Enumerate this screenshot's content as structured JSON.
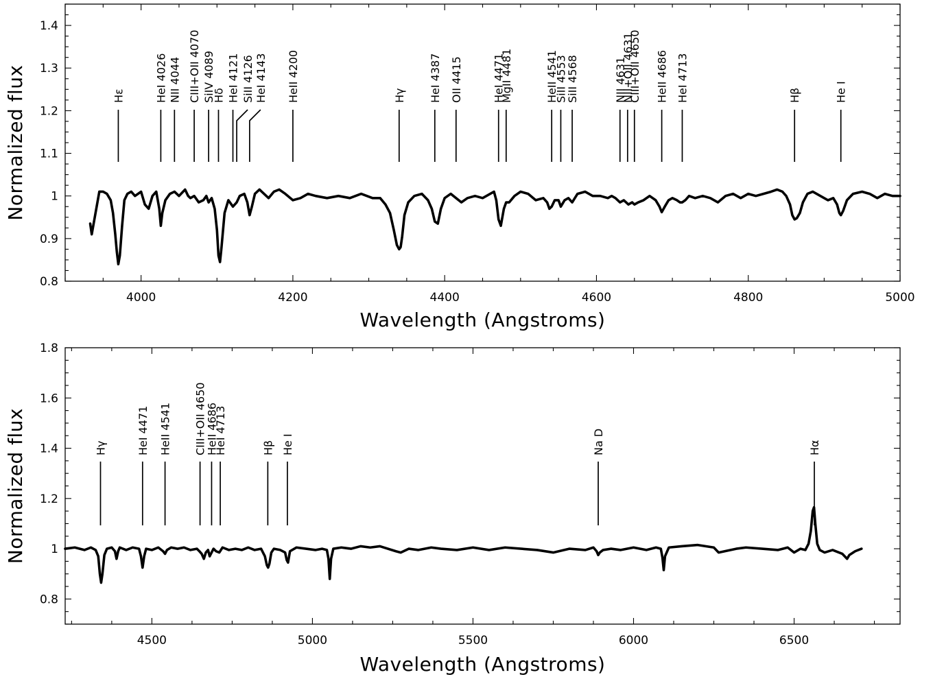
{
  "chart_data": [
    {
      "type": "line",
      "xlabel": "Wavelength (Angstroms)",
      "ylabel": "Normalized flux",
      "xlim": [
        3900,
        5000
      ],
      "ylim": [
        0.8,
        1.45
      ],
      "xticks": [
        4000,
        4200,
        4400,
        4600,
        4800,
        5000
      ],
      "xticklabels": [
        "4000",
        "4200",
        "4400",
        "4600",
        "4800",
        "5000"
      ],
      "yticks": [
        0.8,
        0.9,
        1.0,
        1.1,
        1.2,
        1.3,
        1.4
      ],
      "yticklabels": [
        "0.8",
        "0.9",
        "1",
        "1.1",
        "1.2",
        "1.3",
        "1.4"
      ],
      "grid": false,
      "series": [
        {
          "x": [
            3933,
            3935,
            3940,
            3945,
            3950,
            3955,
            3960,
            3963,
            3966,
            3968,
            3970,
            3972,
            3975,
            3978,
            3982,
            3987,
            3992,
            4000,
            4005,
            4010,
            4015,
            4020,
            4024,
            4026,
            4028,
            4032,
            4038,
            4044,
            4050,
            4058,
            4062,
            4065,
            4070,
            4076,
            4082,
            4086,
            4089,
            4093,
            4097,
            4100,
            4102,
            4104,
            4106,
            4110,
            4115,
            4121,
            4126,
            4130,
            4136,
            4140,
            4143,
            4146,
            4150,
            4156,
            4162,
            4168,
            4175,
            4182,
            4190,
            4200,
            4210,
            4220,
            4230,
            4245,
            4260,
            4275,
            4290,
            4305,
            4315,
            4322,
            4328,
            4333,
            4337,
            4340,
            4342,
            4344,
            4347,
            4352,
            4360,
            4370,
            4378,
            4383,
            4387,
            4391,
            4395,
            4400,
            4408,
            4415,
            4422,
            4430,
            4440,
            4450,
            4460,
            4465,
            4468,
            4471,
            4474,
            4478,
            4481,
            4485,
            4492,
            4500,
            4510,
            4520,
            4530,
            4535,
            4538,
            4541,
            4545,
            4550,
            4553,
            4558,
            4563,
            4568,
            4575,
            4585,
            4595,
            4605,
            4615,
            4620,
            4625,
            4631,
            4636,
            4642,
            4647,
            4650,
            4655,
            4662,
            4670,
            4678,
            4683,
            4686,
            4690,
            4695,
            4700,
            4706,
            4710,
            4713,
            4717,
            4722,
            4730,
            4740,
            4750,
            4760,
            4770,
            4780,
            4790,
            4800,
            4810,
            4820,
            4830,
            4838,
            4845,
            4850,
            4855,
            4858,
            4861,
            4864,
            4868,
            4872,
            4878,
            4885,
            4895,
            4905,
            4912,
            4917,
            4920,
            4922,
            4925,
            4930,
            4938,
            4950,
            4960,
            4970,
            4980,
            4990,
            5000
          ],
          "y": [
            0.935,
            0.91,
            0.96,
            1.01,
            1.01,
            1.005,
            0.99,
            0.96,
            0.91,
            0.87,
            0.84,
            0.86,
            0.93,
            0.99,
            1.005,
            1.01,
            1.0,
            1.01,
            0.98,
            0.97,
            1.0,
            1.01,
            0.97,
            0.93,
            0.96,
            0.99,
            1.005,
            1.01,
            1.0,
            1.015,
            1.0,
            0.995,
            1.0,
            0.985,
            0.99,
            1.0,
            0.985,
            0.995,
            0.97,
            0.92,
            0.86,
            0.845,
            0.88,
            0.96,
            0.99,
            0.975,
            0.985,
            1.0,
            1.005,
            0.985,
            0.955,
            0.975,
            1.005,
            1.015,
            1.005,
            0.995,
            1.01,
            1.015,
            1.005,
            0.99,
            0.995,
            1.005,
            1.0,
            0.995,
            1.0,
            0.995,
            1.005,
            0.995,
            0.995,
            0.98,
            0.96,
            0.92,
            0.885,
            0.875,
            0.88,
            0.905,
            0.955,
            0.985,
            1.0,
            1.005,
            0.99,
            0.97,
            0.94,
            0.935,
            0.97,
            0.995,
            1.005,
            0.995,
            0.985,
            0.995,
            1.0,
            0.995,
            1.005,
            1.01,
            0.99,
            0.945,
            0.93,
            0.97,
            0.985,
            0.985,
            1.0,
            1.01,
            1.005,
            0.99,
            0.995,
            0.985,
            0.97,
            0.975,
            0.99,
            0.99,
            0.975,
            0.99,
            0.995,
            0.985,
            1.005,
            1.01,
            1.0,
            1.0,
            0.995,
            1.0,
            0.995,
            0.985,
            0.99,
            0.98,
            0.985,
            0.98,
            0.985,
            0.99,
            1.0,
            0.99,
            0.975,
            0.962,
            0.975,
            0.99,
            0.995,
            0.99,
            0.985,
            0.985,
            0.99,
            1.0,
            0.995,
            1.0,
            0.995,
            0.985,
            1.0,
            1.005,
            0.995,
            1.005,
            1.0,
            1.005,
            1.01,
            1.015,
            1.01,
            1.0,
            0.98,
            0.955,
            0.945,
            0.948,
            0.96,
            0.985,
            1.005,
            1.01,
            1.0,
            0.99,
            0.995,
            0.98,
            0.96,
            0.955,
            0.965,
            0.99,
            1.005,
            1.01,
            1.005,
            0.995,
            1.005,
            1.0,
            1.0
          ]
        }
      ],
      "annotations": [
        {
          "x": 3970,
          "label": "Hε"
        },
        {
          "x": 4026,
          "label": "HeI 4026"
        },
        {
          "x": 4044,
          "label": "NII 4044"
        },
        {
          "x": 4070,
          "label": "CIII+OII 4070"
        },
        {
          "x": 4089,
          "label": "SiIV 4089"
        },
        {
          "x": 4102,
          "label": "Hδ"
        },
        {
          "x": 4121,
          "label": "HeI 4121"
        },
        {
          "x": 4126,
          "label": "SiII 4126"
        },
        {
          "x": 4143,
          "label": "HeI 4143"
        },
        {
          "x": 4200,
          "label": "HeII 4200"
        },
        {
          "x": 4340,
          "label": "Hγ"
        },
        {
          "x": 4387,
          "label": "HeI 4387"
        },
        {
          "x": 4415,
          "label": "OII 4415"
        },
        {
          "x": 4471,
          "label": "HeI 4471"
        },
        {
          "x": 4481,
          "label": "MgII 4481"
        },
        {
          "x": 4541,
          "label": "HeII 4541"
        },
        {
          "x": 4553,
          "label": "SiII 4553"
        },
        {
          "x": 4568,
          "label": "SiII 4568"
        },
        {
          "x": 4631,
          "label": "NII 4631"
        },
        {
          "x": 4641,
          "label": "NII+OII 4631"
        },
        {
          "x": 4650,
          "label": "CIII+OII 4650"
        },
        {
          "x": 4686,
          "label": "HeII 4686"
        },
        {
          "x": 4713,
          "label": "HeI 4713"
        },
        {
          "x": 4861,
          "label": "Hβ"
        },
        {
          "x": 4922,
          "label": "He I"
        }
      ]
    },
    {
      "type": "line",
      "xlabel": "Wavelength (Angstroms)",
      "ylabel": "Normalized flux",
      "xlim": [
        4230,
        6830
      ],
      "ylim": [
        0.7,
        1.8
      ],
      "xticks": [
        4500,
        5000,
        5500,
        6000,
        6500
      ],
      "xticklabels": [
        "4500",
        "5000",
        "5500",
        "6000",
        "6500"
      ],
      "yticks": [
        0.8,
        1.0,
        1.2,
        1.4,
        1.6,
        1.8
      ],
      "yticklabels": [
        "0.8",
        "1",
        "1.2",
        "1.4",
        "1.6",
        "1.8"
      ],
      "grid": false,
      "series": [
        {
          "x": [
            4230,
            4260,
            4290,
            4310,
            4325,
            4333,
            4338,
            4342,
            4346,
            4352,
            4360,
            4375,
            4385,
            4390,
            4395,
            4400,
            4420,
            4440,
            4460,
            4466,
            4471,
            4476,
            4482,
            4500,
            4520,
            4535,
            4541,
            4547,
            4560,
            4580,
            4600,
            4620,
            4640,
            4648,
            4655,
            4662,
            4668,
            4675,
            4680,
            4686,
            4692,
            4700,
            4710,
            4720,
            4740,
            4760,
            4780,
            4800,
            4820,
            4840,
            4852,
            4858,
            4862,
            4866,
            4872,
            4880,
            4900,
            4915,
            4920,
            4924,
            4930,
            4950,
            4980,
            5010,
            5030,
            5045,
            5050,
            5054,
            5058,
            5065,
            5090,
            5120,
            5150,
            5180,
            5210,
            5260,
            5275,
            5300,
            5330,
            5370,
            5400,
            5450,
            5500,
            5550,
            5600,
            5650,
            5700,
            5750,
            5800,
            5850,
            5875,
            5885,
            5890,
            5895,
            5905,
            5930,
            5960,
            6000,
            6040,
            6070,
            6085,
            6090,
            6094,
            6098,
            6110,
            6150,
            6200,
            6250,
            6265,
            6320,
            6350,
            6400,
            6450,
            6480,
            6500,
            6520,
            6535,
            6545,
            6552,
            6558,
            6562,
            6566,
            6572,
            6580,
            6595,
            6620,
            6650,
            6665,
            6672,
            6690,
            6710
          ],
          "y": [
            1.0,
            1.005,
            0.995,
            1.005,
            0.995,
            0.97,
            0.9,
            0.865,
            0.9,
            0.975,
            1.0,
            1.005,
            0.99,
            0.96,
            0.99,
            1.005,
            0.995,
            1.005,
            1.0,
            0.97,
            0.925,
            0.97,
            1.0,
            0.995,
            1.005,
            0.99,
            0.98,
            0.995,
            1.005,
            1.0,
            1.005,
            0.995,
            1.0,
            0.99,
            0.98,
            0.96,
            0.985,
            0.995,
            0.97,
            0.985,
            1.0,
            0.99,
            0.985,
            1.005,
            0.995,
            1.0,
            0.995,
            1.005,
            0.995,
            1.0,
            0.97,
            0.935,
            0.925,
            0.94,
            0.985,
            1.0,
            0.995,
            0.985,
            0.955,
            0.945,
            0.99,
            1.005,
            1.0,
            0.995,
            1.0,
            0.995,
            0.96,
            0.88,
            0.96,
            1.0,
            1.005,
            1.0,
            1.01,
            1.005,
            1.01,
            0.99,
            0.985,
            1.0,
            0.995,
            1.005,
            1.0,
            0.995,
            1.005,
            0.995,
            1.005,
            1.0,
            0.995,
            0.985,
            1.0,
            0.995,
            1.005,
            0.99,
            0.975,
            0.985,
            0.995,
            1.0,
            0.995,
            1.005,
            0.995,
            1.005,
            1.0,
            0.965,
            0.915,
            0.97,
            1.005,
            1.01,
            1.015,
            1.005,
            0.985,
            1.0,
            1.005,
            1.0,
            0.995,
            1.005,
            0.985,
            1.0,
            0.995,
            1.02,
            1.07,
            1.15,
            1.165,
            1.1,
            1.02,
            0.995,
            0.985,
            0.995,
            0.98,
            0.96,
            0.975,
            0.99,
            1.0
          ]
        }
      ],
      "annotations": [
        {
          "x": 4340,
          "label": "Hγ"
        },
        {
          "x": 4471,
          "label": "HeI 4471"
        },
        {
          "x": 4541,
          "label": "HeII 4541"
        },
        {
          "x": 4650,
          "label": "CIII+OII 4650"
        },
        {
          "x": 4686,
          "label": "HeII 4686"
        },
        {
          "x": 4713,
          "label": "HeI 4713"
        },
        {
          "x": 4861,
          "label": "Hβ"
        },
        {
          "x": 4922,
          "label": "He I"
        },
        {
          "x": 5890,
          "label": "Na D"
        },
        {
          "x": 6563,
          "label": "Hα"
        }
      ]
    }
  ]
}
